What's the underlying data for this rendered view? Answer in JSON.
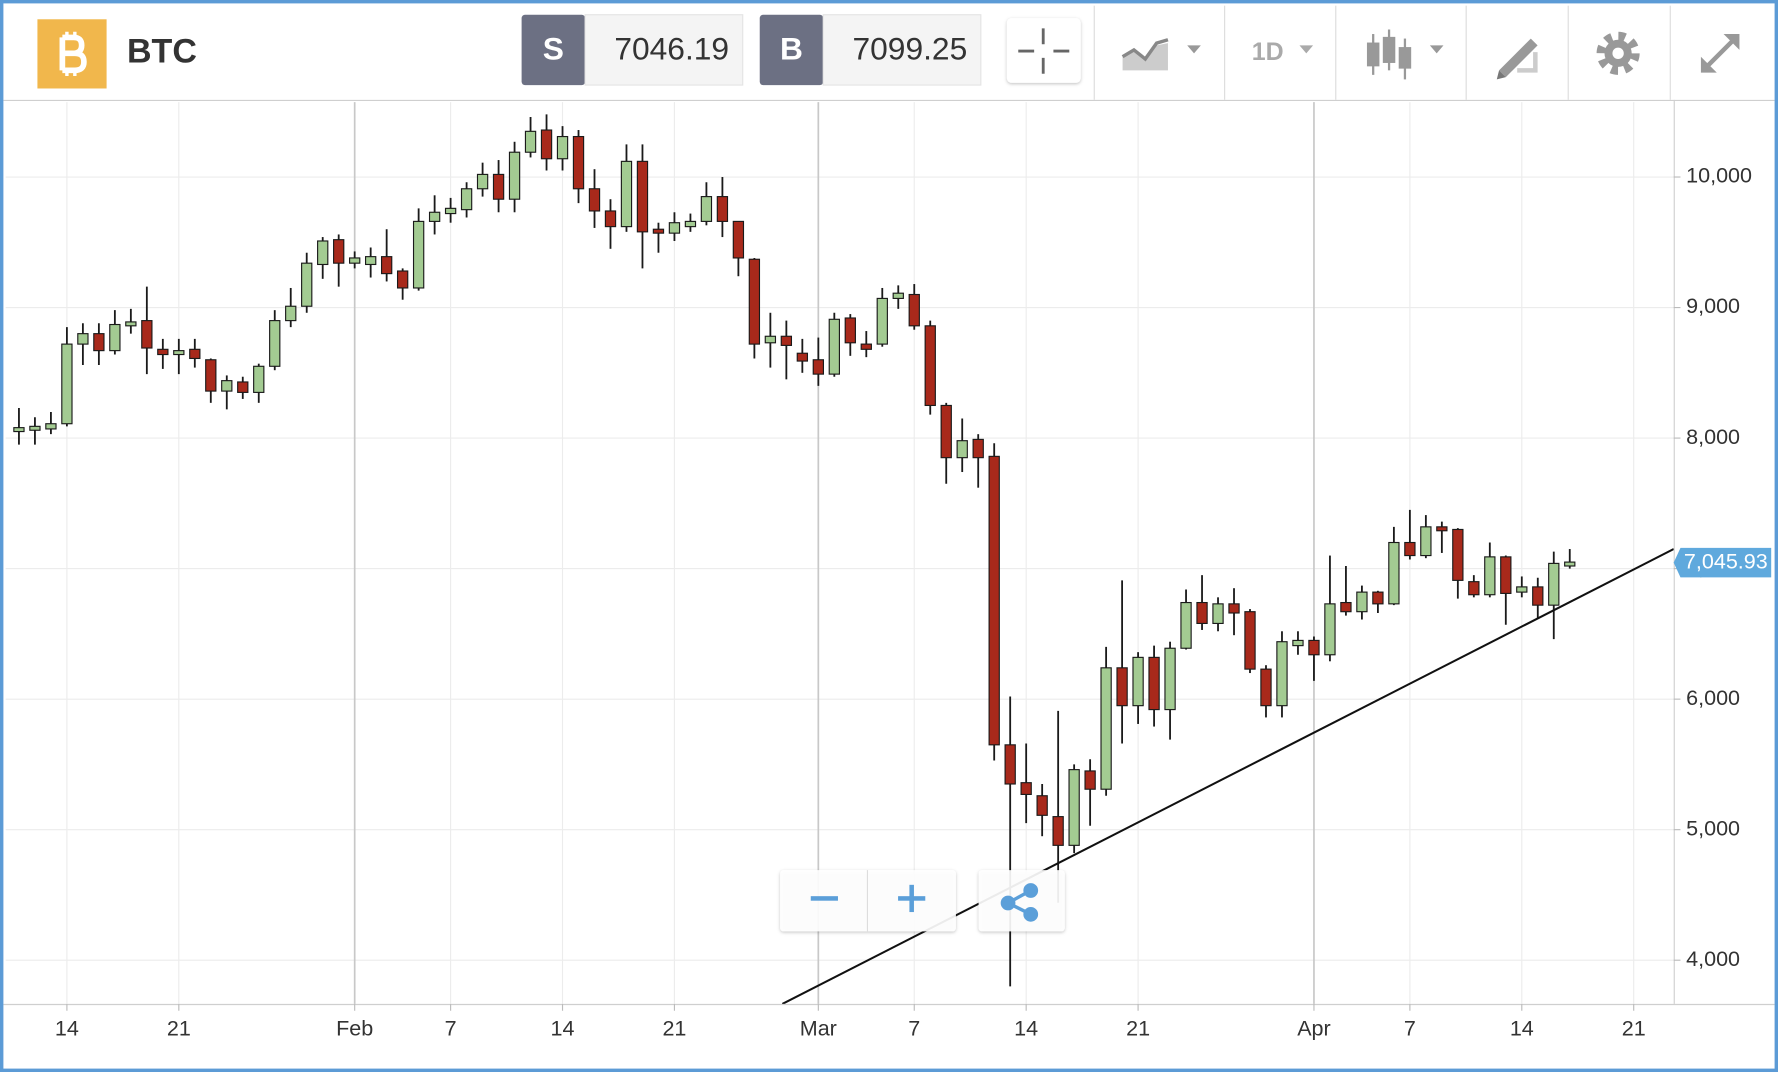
{
  "toolbar": {
    "symbol": "BTC",
    "sell_label": "S",
    "sell_price": 7046.19,
    "buy_label": "B",
    "buy_price": 7099.25,
    "interval": "1D"
  },
  "chart_data": {
    "type": "candlestick",
    "x": [
      11,
      12,
      13,
      14,
      15,
      16,
      17,
      18,
      19,
      20,
      21,
      22,
      23,
      24,
      25,
      26,
      27,
      28,
      29,
      30,
      31,
      32,
      33,
      34,
      35,
      36,
      37,
      38,
      39,
      40,
      41,
      42,
      43,
      44,
      45,
      46,
      47,
      48,
      49,
      50,
      51,
      52,
      53,
      54,
      55,
      56,
      57,
      58,
      59,
      60,
      61,
      62,
      63,
      64,
      65,
      66,
      67,
      68,
      69,
      70,
      71,
      72,
      73,
      74,
      75,
      76,
      77,
      78,
      79,
      80,
      81,
      82,
      83,
      84,
      85,
      86,
      87,
      88,
      89,
      90,
      91,
      92,
      93,
      94,
      95,
      96,
      97,
      98,
      99,
      100,
      101,
      102,
      103,
      104,
      105,
      106,
      107,
      108
    ],
    "open": [
      8050,
      8060,
      8070,
      8110,
      8720,
      8800,
      8670,
      8860,
      8900,
      8680,
      8640,
      8680,
      8600,
      8360,
      8430,
      8350,
      8550,
      8900,
      9010,
      9330,
      9520,
      9340,
      9330,
      9390,
      9280,
      9150,
      9660,
      9720,
      9750,
      9910,
      10020,
      9830,
      10190,
      10360,
      10140,
      10310,
      9910,
      9740,
      9620,
      10120,
      9600,
      9570,
      9620,
      9660,
      9850,
      9660,
      9370,
      8730,
      8780,
      8650,
      8600,
      8490,
      8920,
      8720,
      8720,
      9070,
      9100,
      8860,
      8250,
      7850,
      7990,
      7860,
      5650,
      5360,
      5260,
      5100,
      4880,
      5450,
      5310,
      6240,
      5950,
      6320,
      5920,
      6390,
      6740,
      6580,
      6730,
      6670,
      6230,
      5950,
      6410,
      6450,
      6340,
      6740,
      6670,
      6820,
      6730,
      7200,
      7100,
      7320,
      7300,
      6900,
      6800,
      7090,
      6820,
      6860,
      6720,
      7020
    ],
    "high": [
      8230,
      8160,
      8200,
      8850,
      8880,
      8880,
      8980,
      8990,
      9160,
      8760,
      8760,
      8760,
      8610,
      8480,
      8470,
      8570,
      8980,
      9150,
      9420,
      9540,
      9560,
      9430,
      9460,
      9600,
      9300,
      9760,
      9860,
      9840,
      9960,
      10110,
      10130,
      10270,
      10460,
      10480,
      10390,
      10360,
      10060,
      9830,
      10250,
      10250,
      9650,
      9730,
      9720,
      9960,
      10000,
      9660,
      9380,
      8960,
      8900,
      8760,
      8770,
      8960,
      8950,
      8820,
      9150,
      9170,
      9180,
      8900,
      8270,
      8150,
      8030,
      7960,
      6020,
      5660,
      5350,
      5910,
      5500,
      5540,
      6400,
      6910,
      6360,
      6410,
      6440,
      6840,
      6950,
      6780,
      6850,
      6690,
      6260,
      6520,
      6520,
      6480,
      7100,
      7020,
      6870,
      6830,
      7320,
      7450,
      7410,
      7360,
      7310,
      6950,
      7200,
      7100,
      6940,
      6930,
      7130,
      7150
    ],
    "low": [
      7950,
      7950,
      8030,
      8090,
      8560,
      8560,
      8640,
      8800,
      8490,
      8530,
      8490,
      8540,
      8270,
      8220,
      8300,
      8270,
      8520,
      8850,
      8960,
      9220,
      9160,
      9300,
      9230,
      9200,
      9060,
      9130,
      9560,
      9650,
      9690,
      9850,
      9730,
      9730,
      10150,
      10050,
      10050,
      9800,
      9610,
      9450,
      9580,
      9300,
      9420,
      9510,
      9580,
      9630,
      9540,
      9240,
      8610,
      8540,
      8450,
      8500,
      8400,
      8470,
      8630,
      8620,
      8700,
      8990,
      8830,
      8180,
      7650,
      7740,
      7620,
      5530,
      3800,
      5050,
      4950,
      4440,
      4820,
      5030,
      5260,
      5660,
      5810,
      5790,
      5690,
      6380,
      6530,
      6520,
      6490,
      6200,
      5860,
      5860,
      6340,
      6140,
      6290,
      6640,
      6610,
      6660,
      6720,
      7070,
      7080,
      7120,
      6770,
      6780,
      6780,
      6570,
      6780,
      6620,
      6460,
      7000
    ],
    "close": [
      8080,
      8090,
      8110,
      8720,
      8800,
      8670,
      8870,
      8890,
      8690,
      8640,
      8670,
      8610,
      8360,
      8440,
      8350,
      8550,
      8900,
      9010,
      9340,
      9510,
      9340,
      9380,
      9390,
      9260,
      9150,
      9660,
      9730,
      9760,
      9910,
      10020,
      9830,
      10190,
      10350,
      10140,
      10310,
      9910,
      9740,
      9620,
      10120,
      9580,
      9570,
      9650,
      9660,
      9850,
      9660,
      9380,
      8720,
      8780,
      8710,
      8590,
      8490,
      8910,
      8730,
      8680,
      9070,
      9110,
      8860,
      8250,
      7850,
      7980,
      7850,
      5650,
      5350,
      5270,
      5110,
      4880,
      5460,
      5310,
      6240,
      5950,
      6320,
      5920,
      6390,
      6740,
      6580,
      6730,
      6660,
      6230,
      5950,
      6440,
      6450,
      6340,
      6730,
      6670,
      6820,
      6730,
      7200,
      7100,
      7320,
      7290,
      6910,
      6800,
      7090,
      6810,
      6860,
      6720,
      7040,
      7050
    ],
    "up_color": "#a3cb92",
    "down_color": "#a8291b",
    "xlim": [
      10.17,
      114.5
    ],
    "xticks": [
      14,
      21,
      {
        "value": 32,
        "label": "Feb"
      },
      {
        "value": 38,
        "label": "7"
      },
      {
        "value": 45,
        "label": "14"
      },
      {
        "value": 52,
        "label": "21"
      },
      {
        "value": 61,
        "label": "Mar"
      },
      {
        "value": 67,
        "label": "7"
      },
      {
        "value": 74,
        "label": "14"
      },
      {
        "value": 81,
        "label": "21"
      },
      {
        "value": 92,
        "label": "Apr"
      },
      {
        "value": 98,
        "label": "7"
      },
      {
        "value": 105,
        "label": "14"
      },
      {
        "value": 112,
        "label": "21"
      }
    ],
    "ylim": [
      3665,
      10574
    ],
    "yticks": [
      {
        "value": 4000,
        "label": "4,000"
      },
      {
        "value": 5000,
        "label": "5,000"
      },
      {
        "value": 6000,
        "label": "6,000"
      },
      {
        "value": 7000,
        "label": "7,000"
      },
      {
        "value": 8000,
        "label": "8,000"
      },
      {
        "value": 9000,
        "label": "9,000"
      },
      {
        "value": 10000,
        "label": "10,000"
      }
    ],
    "grid": true,
    "last_price": {
      "value": 7045.93,
      "label": "7,045.93"
    },
    "trendline": {
      "x": [
        58.75,
        114.5
      ],
      "y": [
        3665,
        7150
      ]
    }
  }
}
